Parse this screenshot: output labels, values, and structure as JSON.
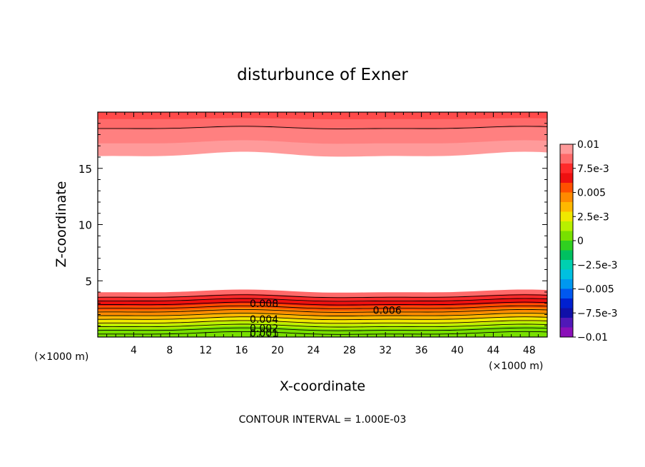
{
  "chart_data": {
    "type": "filled-contour",
    "title": "disturbunce of Exner",
    "xlabel": "X-coordinate",
    "ylabel": "Z-coordinate",
    "x_unit": "(×1000 m)",
    "z_unit": "(×1000 m)",
    "xlim": [
      0,
      50
    ],
    "ylim": [
      0,
      20
    ],
    "x_ticks": [
      "4",
      "8",
      "12",
      "16",
      "20",
      "24",
      "28",
      "32",
      "36",
      "40",
      "44",
      "48"
    ],
    "y_ticks": [
      "5",
      "10",
      "15"
    ],
    "contour_interval_text": "CONTOUR INTERVAL = 1.000E-03",
    "contour_labels": [
      {
        "text": "0.008",
        "x": 18.5,
        "z": 2.8
      },
      {
        "text": "0.006",
        "x": 32.2,
        "z": 2.2
      },
      {
        "text": "0.004",
        "x": 18.5,
        "z": 1.4
      },
      {
        "text": "0.002",
        "x": 18.5,
        "z": 0.6
      },
      {
        "text": "0.001",
        "x": 18.5,
        "z": 0.15
      }
    ],
    "colorbar": {
      "labels": [
        "0.01",
        "7.5e-3",
        "0.005",
        "2.5e-3",
        "0",
        "−2.5e-3",
        "−0.005",
        "−7.5e-3",
        "−0.01"
      ],
      "colors": [
        "#ff9a9a",
        "#ff6a6a",
        "#ff2a2a",
        "#ee1010",
        "#ff5000",
        "#ff8a00",
        "#ffb800",
        "#f0e800",
        "#b8f000",
        "#78e000",
        "#30d020",
        "#00c060",
        "#00d0b0",
        "#00c0e0",
        "#0098f0",
        "#0058f0",
        "#0020d0",
        "#1010a8",
        "#5018b8",
        "#8a10b8"
      ]
    },
    "bottom_layer_levels": [
      0.009,
      0.008,
      0.007,
      0.006,
      0.005,
      0.004,
      0.003,
      0.002,
      0.001,
      0.0005
    ]
  }
}
